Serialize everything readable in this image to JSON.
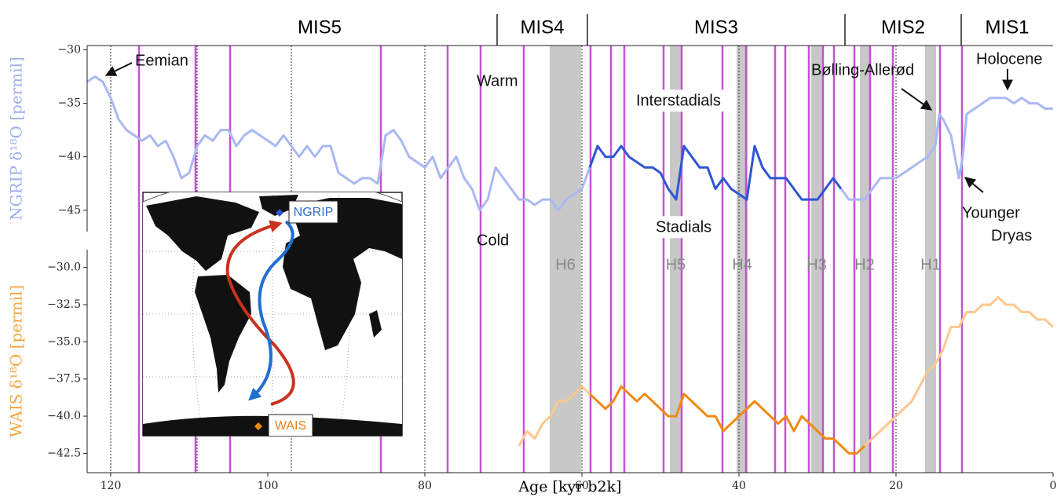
{
  "chart_data": {
    "type": "line",
    "xlabel": "Age [kyr b2k]",
    "xlim": [
      123,
      0
    ],
    "xticks": [
      120,
      100,
      80,
      60,
      40,
      20,
      0
    ],
    "panels": [
      {
        "ylabel": "NGRIP δ¹⁸O [permil]",
        "label_color": "#9fb0ee",
        "ylim": [
          -47,
          -29.6
        ],
        "yticks": [
          {
            "value": -30,
            "label": "−30"
          },
          {
            "value": -35,
            "label": "−35"
          },
          {
            "value": -40,
            "label": "−40"
          },
          {
            "value": -45,
            "label": "−45"
          }
        ],
        "series": [
          {
            "color": "#aab8f2",
            "x": [
              123,
              122,
              121,
              120,
              119,
              118,
              117,
              116,
              115,
              114,
              113,
              112,
              111,
              110,
              109,
              108,
              107,
              106,
              105,
              104,
              103,
              102,
              101,
              100,
              99,
              98,
              97,
              96,
              95,
              94,
              93,
              92,
              91,
              90,
              89,
              88,
              87,
              86,
              85,
              84,
              83,
              82,
              81,
              80,
              79,
              78,
              77,
              76,
              75,
              74,
              73,
              72,
              71,
              70,
              69,
              68,
              67,
              66,
              65,
              64,
              63,
              62,
              61,
              60,
              59
            ],
            "values": [
              -33,
              -32.5,
              -33,
              -34.5,
              -36.5,
              -37.5,
              -38,
              -38.5,
              -38,
              -39,
              -38.5,
              -40,
              -42,
              -41.5,
              -39,
              -38,
              -38.5,
              -37.5,
              -37.5,
              -39,
              -38,
              -37.5,
              -38,
              -38.5,
              -39,
              -38,
              -39,
              -40,
              -39,
              -40,
              -39,
              -39,
              -41.5,
              -42,
              -42.5,
              -42,
              -42,
              -42.5,
              -38,
              -37.5,
              -38.5,
              -40,
              -40.5,
              -41,
              -40,
              -42,
              -41,
              -40,
              -42,
              -43,
              -45,
              -44,
              -41,
              -42,
              -43,
              -44,
              -44,
              -44.5,
              -44,
              -44,
              -45,
              -44,
              -43.5,
              -43,
              -41
            ]
          },
          {
            "color": "#2f55d4",
            "x": [
              59,
              58,
              57,
              56,
              55,
              54,
              53,
              52,
              51,
              50,
              49,
              48,
              47,
              46,
              45,
              44,
              43,
              42,
              41,
              40,
              39,
              38,
              37,
              36,
              35,
              34,
              33,
              32,
              31,
              30,
              29,
              28,
              27
            ],
            "values": [
              -41,
              -39,
              -40,
              -40,
              -39,
              -40,
              -40.5,
              -41,
              -41,
              -41.5,
              -43,
              -44,
              -39,
              -40,
              -41,
              -41,
              -43,
              -42,
              -43,
              -43.5,
              -44,
              -39,
              -41,
              -42,
              -42,
              -42,
              -43,
              -44,
              -44,
              -44,
              -43,
              -42,
              -43
            ]
          },
          {
            "color": "#aab8f2",
            "x": [
              27,
              26,
              25,
              24,
              23,
              22,
              21,
              20,
              19,
              18,
              17,
              16,
              15,
              14.5,
              14,
              13,
              12.5,
              12,
              11.5,
              11,
              10,
              9,
              8,
              7,
              6,
              5,
              4,
              3,
              2,
              1,
              0
            ],
            "values": [
              -43,
              -44,
              -44,
              -44,
              -43,
              -42,
              -42,
              -42,
              -41.5,
              -41,
              -40.5,
              -40,
              -39,
              -36,
              -36.5,
              -38,
              -40,
              -42,
              -40,
              -36,
              -35.5,
              -35,
              -34.5,
              -34.5,
              -34.5,
              -35,
              -34.5,
              -35,
              -35,
              -35.5,
              -35.5
            ]
          }
        ]
      },
      {
        "ylabel": "WAIS δ¹⁸O [permil]",
        "label_color": "#f5a742",
        "ylim": [
          -43.8,
          -28.8
        ],
        "yticks": [
          {
            "value": -30,
            "label": "−30.0"
          },
          {
            "value": -32.5,
            "label": "−32.5"
          },
          {
            "value": -35,
            "label": "−35.0"
          },
          {
            "value": -37.5,
            "label": "−37.5"
          },
          {
            "value": -40,
            "label": "−40.0"
          },
          {
            "value": -42.5,
            "label": "−42.5"
          }
        ],
        "series": [
          {
            "color": "#fcc88e",
            "x": [
              68,
              67,
              66,
              65,
              64,
              63,
              62,
              61,
              60,
              59
            ],
            "values": [
              -42,
              -41,
              -41.5,
              -40.5,
              -40,
              -39,
              -39,
              -38.5,
              -38,
              -38.5
            ]
          },
          {
            "color": "#f08a14",
            "x": [
              59,
              58,
              57,
              56,
              55,
              54,
              53,
              52,
              51,
              50,
              49,
              48,
              47,
              46,
              45,
              44,
              43,
              42,
              41,
              40,
              39,
              38,
              37,
              36,
              35,
              34,
              33,
              32,
              31,
              30,
              29,
              28,
              27,
              26,
              25,
              24
            ],
            "values": [
              -38.5,
              -39,
              -39.5,
              -39,
              -38,
              -38.5,
              -39,
              -38.5,
              -39,
              -39.5,
              -40,
              -40,
              -38.5,
              -39,
              -39.5,
              -40,
              -40,
              -41,
              -40.5,
              -40,
              -39.5,
              -39,
              -39.5,
              -40,
              -40.5,
              -40,
              -41,
              -40,
              -40.5,
              -41,
              -41.5,
              -41.5,
              -42,
              -42.5,
              -42.5,
              -42
            ]
          },
          {
            "color": "#fcc88e",
            "x": [
              24,
              23,
              22,
              21,
              20,
              19,
              18,
              17,
              16,
              15,
              14,
              13,
              12,
              11,
              10,
              9,
              8,
              7,
              6,
              5,
              4,
              3,
              2,
              1,
              0
            ],
            "values": [
              -42,
              -41.5,
              -41,
              -40.5,
              -40,
              -39.5,
              -39,
              -38,
              -37,
              -36.5,
              -35.5,
              -34,
              -34,
              -33,
              -33,
              -32.5,
              -32.5,
              -32,
              -32.5,
              -32.5,
              -33,
              -33,
              -33.5,
              -33.5,
              -34
            ]
          }
        ]
      }
    ],
    "heinrich": [
      {
        "label": "H6",
        "from": 64.1,
        "to": 60.1
      },
      {
        "label": "H5",
        "from": 48.8,
        "to": 47.3
      },
      {
        "label": "H4",
        "from": 40.3,
        "to": 38.9
      },
      {
        "label": "H3",
        "from": 30.8,
        "to": 29.4
      },
      {
        "label": "H2",
        "from": 24.6,
        "to": 23.4
      },
      {
        "label": "H1",
        "from": 16.3,
        "to": 14.9
      }
    ],
    "events": [
      116.4,
      109.2,
      104.8,
      85.6,
      77.1,
      72.9,
      67.4,
      58.9,
      56.3,
      54.6,
      49.6,
      47.3,
      42.1,
      39.1,
      35.4,
      34.1,
      31.1,
      29.3,
      27.9,
      25.3,
      23.3,
      20.4,
      14.4,
      11.6
    ],
    "event_color": "#c552d4",
    "dotted": [
      120,
      109,
      97,
      80,
      60,
      40,
      20
    ],
    "stages": {
      "labels": [
        "MIS5",
        "MIS4",
        "MIS3",
        "MIS2",
        "MIS1"
      ],
      "boundaries": [
        70.8,
        59.3,
        26.5,
        11.7
      ]
    },
    "annotations": [
      {
        "text": "Eemian"
      },
      {
        "text": "Warm",
        "color": "#c0392b"
      },
      {
        "text": "Cold",
        "color": "#1f6fd0"
      },
      {
        "text": "Interstadials"
      },
      {
        "text": "Stadials"
      },
      {
        "text": "Bølling-Allerød"
      },
      {
        "text": "Holocene"
      },
      {
        "text": "Younger"
      },
      {
        "text": "Dryas"
      }
    ],
    "map": {
      "labels": [
        {
          "text": "NGRIP",
          "color": "#2f6fd0"
        },
        {
          "text": "WAIS",
          "color": "#e8801a"
        }
      ]
    }
  }
}
